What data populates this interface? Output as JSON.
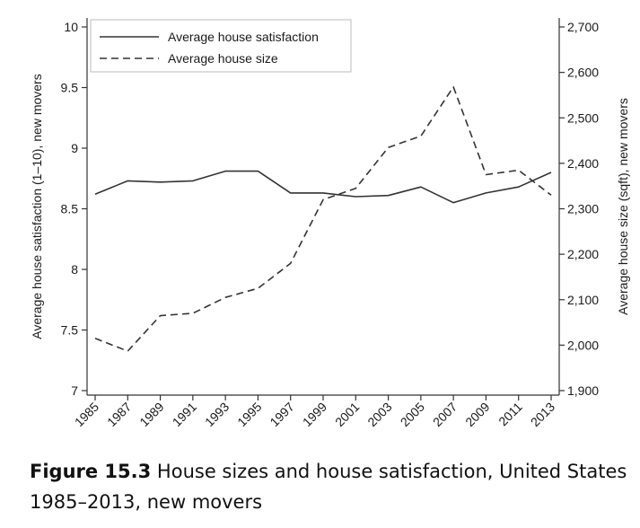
{
  "chart_data": {
    "type": "line",
    "x": [
      1985,
      1987,
      1989,
      1991,
      1993,
      1995,
      1997,
      1999,
      2001,
      2003,
      2005,
      2007,
      2009,
      2011,
      2013
    ],
    "x_tick_labels": [
      "1985",
      "1987",
      "1989",
      "1991",
      "1993",
      "1995",
      "1997",
      "1999",
      "2001",
      "2003",
      "2005",
      "2007",
      "2009",
      "2011",
      "2013"
    ],
    "series": [
      {
        "name": "Average house satisfaction",
        "axis": "left",
        "style": "solid",
        "values": [
          8.62,
          8.73,
          8.72,
          8.73,
          8.81,
          8.81,
          8.63,
          8.63,
          8.6,
          8.61,
          8.68,
          8.55,
          8.63,
          8.68,
          8.8
        ]
      },
      {
        "name": "Average house size",
        "axis": "right",
        "style": "dashed",
        "values": [
          2015,
          1987,
          2065,
          2070,
          2105,
          2125,
          2180,
          2320,
          2345,
          2435,
          2460,
          2568,
          2375,
          2385,
          2330
        ]
      }
    ],
    "ylabel_left": "Average house satisfaction (1–10), new movers",
    "ylabel_right": "Average house size (sqft), new movers",
    "ylim_left": [
      7,
      10
    ],
    "ylim_right": [
      1900,
      2700
    ],
    "left_ticks": [
      "7",
      "7.5",
      "8",
      "8.5",
      "9",
      "9.5",
      "10"
    ],
    "right_ticks": [
      "1,900",
      "2,000",
      "2,100",
      "2,200",
      "2,300",
      "2,400",
      "2,500",
      "2,600",
      "2,700"
    ],
    "legend_placement": "top-left",
    "grid": false
  },
  "caption": {
    "label": "Figure 15.3",
    "text": " House sizes and house satisfaction, United States 1985–2013, new movers"
  }
}
